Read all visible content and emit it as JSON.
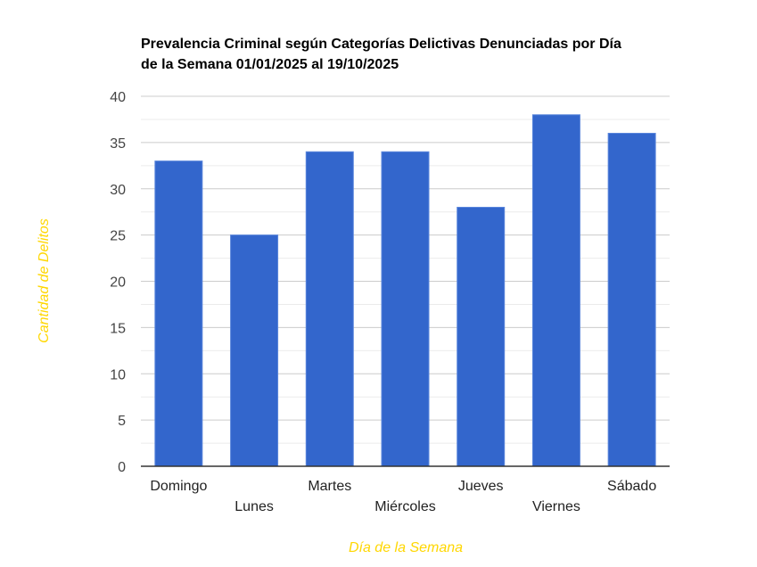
{
  "chart_data": {
    "type": "bar",
    "title_lines": [
      "Prevalencia Criminal según Categorías Delictivas Denunciadas por Día",
      "de la Semana 01/01/2025 al 19/10/2025"
    ],
    "xlabel": "Día de la Semana",
    "ylabel": "Cantidad de Delitos",
    "categories": [
      "Domingo",
      "Lunes",
      "Martes",
      "Miércoles",
      "Jueves",
      "Viernes",
      "Sábado"
    ],
    "values": [
      33,
      25,
      34,
      34,
      28,
      38,
      36
    ],
    "ylim": [
      0,
      40
    ],
    "yticks": [
      0,
      5,
      10,
      15,
      20,
      25,
      30,
      35,
      40
    ],
    "minor_gridlines": true,
    "grid": true,
    "legend": "none",
    "colors": {
      "bar": "#3366cc",
      "axis_title": "#ffd700",
      "grid_major": "#cccccc",
      "grid_minor": "#ebebeb",
      "baseline": "#333333"
    }
  }
}
